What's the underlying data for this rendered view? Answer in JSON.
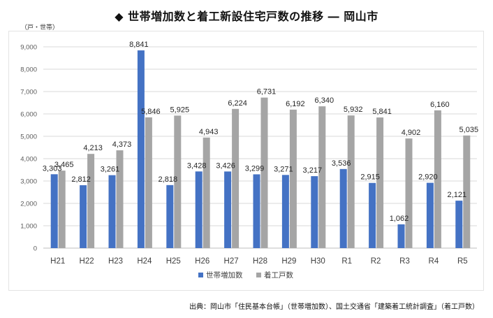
{
  "title": "◆ 世帯増加数と着工新設住宅戸数の推移 ― 岡山市",
  "unit_label": "（戸・世帯）",
  "source": "出典：岡山市「住民基本台帳」（世帯増加数）、国土交通省「建築着工統計調査」（着工戸数）",
  "colors": {
    "series1": "#4472C4",
    "series2": "#A5A5A5",
    "grid": "#D9D9D9"
  },
  "chart_data": {
    "type": "bar",
    "title": "",
    "xlabel": "",
    "ylabel": "",
    "categories": [
      "H21",
      "H22",
      "H23",
      "H24",
      "H25",
      "H26",
      "H27",
      "H28",
      "H29",
      "H30",
      "R1",
      "R2",
      "R3",
      "R4",
      "R5"
    ],
    "series": [
      {
        "name": "世帯増加数",
        "values": [
          3303,
          2812,
          3261,
          8841,
          2818,
          3428,
          3426,
          3299,
          3271,
          3217,
          3536,
          2915,
          1062,
          2920,
          2121
        ],
        "labels": [
          "3,303",
          "2,812",
          "3,261",
          "8,841",
          "2,818",
          "3,428",
          "3,426",
          "3,299",
          "3,271",
          "3,217",
          "3,536",
          "2,915",
          "1,062",
          "2,920",
          "2,121"
        ]
      },
      {
        "name": "着工戸数",
        "values": [
          3465,
          4213,
          4373,
          5846,
          5925,
          4943,
          6224,
          6731,
          6192,
          6340,
          5932,
          5841,
          4902,
          6160,
          5035
        ],
        "labels": [
          "3,465",
          "4,213",
          "4,373",
          "5,846",
          "5,925",
          "4,943",
          "6,224",
          "6,731",
          "6,192",
          "6,340",
          "5,932",
          "5,841",
          "4,902",
          "6,160",
          "5,035"
        ]
      }
    ],
    "ylim": [
      0,
      9000
    ],
    "yticks": [
      0,
      1000,
      2000,
      3000,
      4000,
      5000,
      6000,
      7000,
      8000,
      9000
    ],
    "ytick_labels": [
      "0",
      "1,000",
      "2,000",
      "3,000",
      "4,000",
      "5,000",
      "6,000",
      "7,000",
      "8,000",
      "9,000"
    ],
    "grid": true,
    "legend_position": "bottom"
  }
}
